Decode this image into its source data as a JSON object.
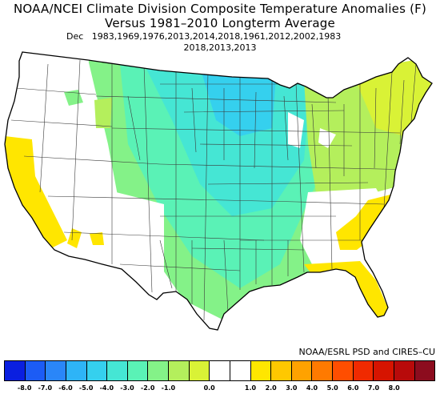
{
  "title_line1": "NOAA/NCEI Climate Division Composite Temperature Anomalies (F)",
  "title_line2": "Versus 1981–2010 Longterm Average",
  "dates_line1": "Dec   1983,1969,1976,2013,2014,2018,1961,2012,2002,1983",
  "dates_line2": "2018,2013,2013",
  "credit": "NOAA/ESRL PSD and CIRES–CU",
  "colorbar": {
    "colors": [
      "#0a1fe0",
      "#1c5cf5",
      "#2a86f8",
      "#2eb4f7",
      "#35d0ee",
      "#45e6d4",
      "#5af2b6",
      "#84f288",
      "#b4ef5c",
      "#d9f236",
      "#ffffff",
      "#ffffff",
      "#ffe600",
      "#ffc800",
      "#ffa200",
      "#ff7a00",
      "#ff4e00",
      "#f02a00",
      "#d61400",
      "#b80a0a",
      "#8c0c1e"
    ],
    "labels": [
      "-8.0",
      "-7.0",
      "-6.0",
      "-5.0",
      "-4.0",
      "-3.0",
      "-2.0",
      "-1.0",
      "0.0",
      "1.0",
      "2.0",
      "3.0",
      "4.0",
      "5.0",
      "6.0",
      "7.0",
      "8.0"
    ]
  },
  "regions": {
    "white": "#ffffff",
    "yellow": "#ffe600",
    "lime": "#b4ef5c",
    "green": "#84f288",
    "mint": "#5af2b6",
    "teal": "#45e6d4",
    "cyan": "#35d0ee"
  }
}
